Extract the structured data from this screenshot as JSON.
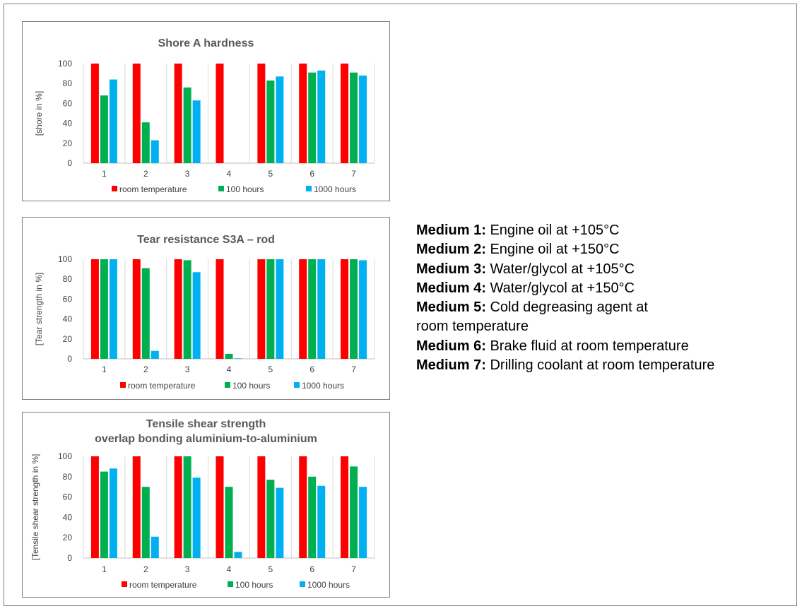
{
  "chart_data": [
    {
      "type": "bar",
      "title": [
        "Shore A hardness"
      ],
      "ylabel": "[shore in %]",
      "ylim": [
        0,
        100
      ],
      "yticks": [
        "0",
        "20",
        "40",
        "60",
        "80",
        "100"
      ],
      "categories": [
        "1",
        "2",
        "3",
        "4",
        "5",
        "6",
        "7"
      ],
      "grid": "vertical separators",
      "legend_position": "bottom",
      "series": [
        {
          "name": "room temperature",
          "color": "#ff0000",
          "values": [
            100,
            100,
            100,
            100,
            100,
            100,
            100
          ]
        },
        {
          "name": "100 hours",
          "color": "#00b050",
          "values": [
            68,
            41,
            76,
            0,
            83,
            91,
            91
          ]
        },
        {
          "name": "1000 hours",
          "color": "#00b0f0",
          "values": [
            84,
            23,
            63,
            0,
            87,
            93,
            88
          ]
        }
      ]
    },
    {
      "type": "bar",
      "title": [
        "Tear resistance S3A – rod"
      ],
      "ylabel": "[Tear strength in %]",
      "ylim": [
        0,
        100
      ],
      "yticks": [
        "0",
        "20",
        "40",
        "60",
        "80",
        "100"
      ],
      "categories": [
        "1",
        "2",
        "3",
        "4",
        "5",
        "6",
        "7"
      ],
      "grid": "vertical separators",
      "legend_position": "bottom",
      "series": [
        {
          "name": "room temperature",
          "color": "#ff0000",
          "values": [
            100,
            100,
            100,
            100,
            100,
            100,
            100
          ]
        },
        {
          "name": "100 hours",
          "color": "#00b050",
          "values": [
            100,
            91,
            99,
            5,
            100,
            100,
            100
          ]
        },
        {
          "name": "1000 hours",
          "color": "#00b0f0",
          "values": [
            100,
            8,
            87,
            0.5,
            100,
            100,
            99
          ]
        }
      ]
    },
    {
      "type": "bar",
      "title": [
        "Tensile shear strength",
        "overlap bonding aluminium-to-aluminium"
      ],
      "ylabel": "[Tensile shear strength in %]",
      "ylim": [
        0,
        100
      ],
      "yticks": [
        "0",
        "20",
        "40",
        "60",
        "80",
        "100"
      ],
      "categories": [
        "1",
        "2",
        "3",
        "4",
        "5",
        "6",
        "7"
      ],
      "grid": "vertical separators",
      "legend_position": "bottom",
      "series": [
        {
          "name": "room temperature",
          "color": "#ff0000",
          "values": [
            100,
            100,
            100,
            100,
            100,
            100,
            100
          ]
        },
        {
          "name": "100 hours",
          "color": "#00b050",
          "values": [
            85,
            70,
            100,
            70,
            77,
            80,
            90
          ]
        },
        {
          "name": "1000 hours",
          "color": "#00b0f0",
          "values": [
            88,
            21,
            79,
            6,
            69,
            71,
            70
          ]
        }
      ]
    }
  ],
  "media_legend": [
    {
      "label": "Medium 1:",
      "text": "Engine oil at +105°C"
    },
    {
      "label": "Medium 2:",
      "text": "Engine oil at +150°C"
    },
    {
      "label": "Medium 3:",
      "text": "Water/glycol at +105°C"
    },
    {
      "label": "Medium 4:",
      "text": "Water/glycol at +150°C"
    },
    {
      "label": "Medium 5:",
      "text": "Cold degreasing agent at",
      "text_line2": "room temperature"
    },
    {
      "label": "Medium 6:",
      "text": "Brake fluid at room temperature"
    },
    {
      "label": "Medium 7:",
      "text": "Drilling coolant at room temperature"
    }
  ]
}
